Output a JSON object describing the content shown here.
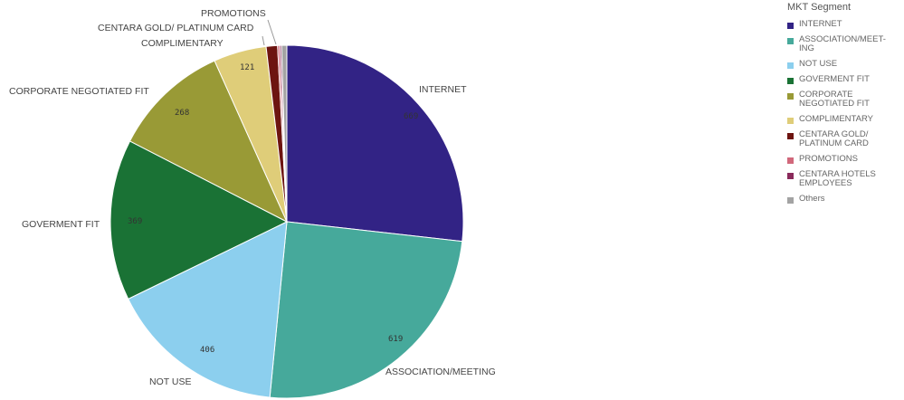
{
  "legend": {
    "title": "MKT Segment",
    "items": [
      {
        "label": "INTERNET",
        "color": "#322385"
      },
      {
        "label": "ASSOCIATION/MEET-ING",
        "color": "#46a99b"
      },
      {
        "label": "NOT USE",
        "color": "#8ccfee"
      },
      {
        "label": "GOVERMENT FIT",
        "color": "#1a7235"
      },
      {
        "label": "CORPORATE NEGOTIATED FIT",
        "color": "#999a36"
      },
      {
        "label": "COMPLIMENTARY",
        "color": "#dfcd79"
      },
      {
        "label": "CENTARA GOLD/ PLATINUM CARD",
        "color": "#6d1410"
      },
      {
        "label": "PROMOTIONS",
        "color": "#d1687b"
      },
      {
        "label": "CENTARA HOTELS EMPLOYEES",
        "color": "#8a2a5b"
      },
      {
        "label": "Others",
        "color": "#a3a3a3"
      }
    ]
  },
  "chart_data": {
    "type": "pie",
    "title": "",
    "categories": [
      "INTERNET",
      "ASSOCIATION/MEETING",
      "NOT USE",
      "GOVERMENT FIT",
      "CORPORATE NEGOTIATED FIT",
      "COMPLIMENTARY",
      "CENTARA GOLD/ PLATINUM CARD",
      "PROMOTIONS",
      "CENTARA HOTELS EMPLOYEES",
      "Others"
    ],
    "values": [
      669,
      619,
      406,
      369,
      268,
      121,
      26,
      5,
      4,
      12
    ],
    "value_labels": [
      "669",
      "619",
      "406",
      "369",
      "268",
      "121",
      "",
      "",
      "",
      ""
    ],
    "outer_labels": [
      "INTERNET",
      "ASSOCIATION/MEETING",
      "NOT USE",
      "GOVERMENT FIT",
      "CORPORATE NEGOTIATED FIT",
      "COMPLIMENTARY",
      "CENTARA GOLD/ PLATINUM CARD",
      "PROMOTIONS",
      "",
      ""
    ],
    "colors": [
      "#322385",
      "#46a99b",
      "#8ccfee",
      "#1a7235",
      "#999a36",
      "#dfcd79",
      "#6d1410",
      "#d1687b",
      "#8a2a5b",
      "#a3a3a3"
    ],
    "legend_position": "right"
  }
}
